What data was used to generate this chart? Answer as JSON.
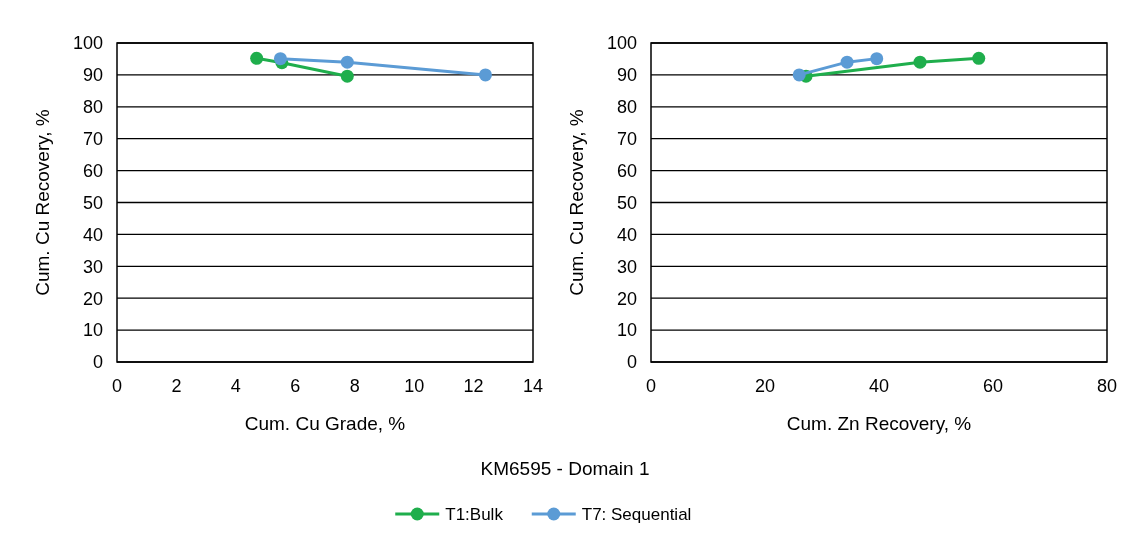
{
  "chart_data": [
    {
      "type": "line",
      "xlabel": "Cum. Cu Grade, %",
      "ylabel": "Cum. Cu Recovery, %",
      "xlim": [
        0,
        14
      ],
      "xticks": [
        0,
        2,
        4,
        6,
        8,
        10,
        12,
        14
      ],
      "ylim": [
        0,
        100
      ],
      "yticks": [
        0,
        10,
        20,
        30,
        40,
        50,
        60,
        70,
        80,
        90,
        100
      ],
      "grid": "y",
      "marker": "circle",
      "legend": "bottom",
      "annotations": [
        "KM6595 - Domain 1"
      ],
      "series": [
        {
          "name": "T1:Bulk",
          "color": "#1fae4c",
          "x": [
            4.7,
            5.55,
            7.75
          ],
          "values": [
            95.2,
            93.8,
            89.6
          ]
        },
        {
          "name": "T7: Sequential",
          "color": "#5b9bd5",
          "x": [
            5.5,
            7.75,
            12.4
          ],
          "values": [
            95.1,
            94,
            90
          ]
        }
      ]
    },
    {
      "type": "line",
      "xlabel": "Cum. Zn Recovery, %",
      "ylabel": "Cum. Cu Recovery, %",
      "xlim": [
        0,
        80
      ],
      "xticks": [
        0,
        20,
        40,
        60,
        80
      ],
      "ylim": [
        0,
        100
      ],
      "yticks": [
        0,
        10,
        20,
        30,
        40,
        50,
        60,
        70,
        80,
        90,
        100
      ],
      "grid": "y",
      "marker": "circle",
      "series": [
        {
          "color": "#1fae4c",
          "x": [
            27.2,
            47.2,
            57.5
          ],
          "values": [
            89.6,
            94,
            95.2
          ]
        },
        {
          "color": "#5b9bd5",
          "x": [
            26,
            34.4,
            39.6
          ],
          "values": [
            90,
            94,
            95.1
          ]
        }
      ]
    }
  ]
}
